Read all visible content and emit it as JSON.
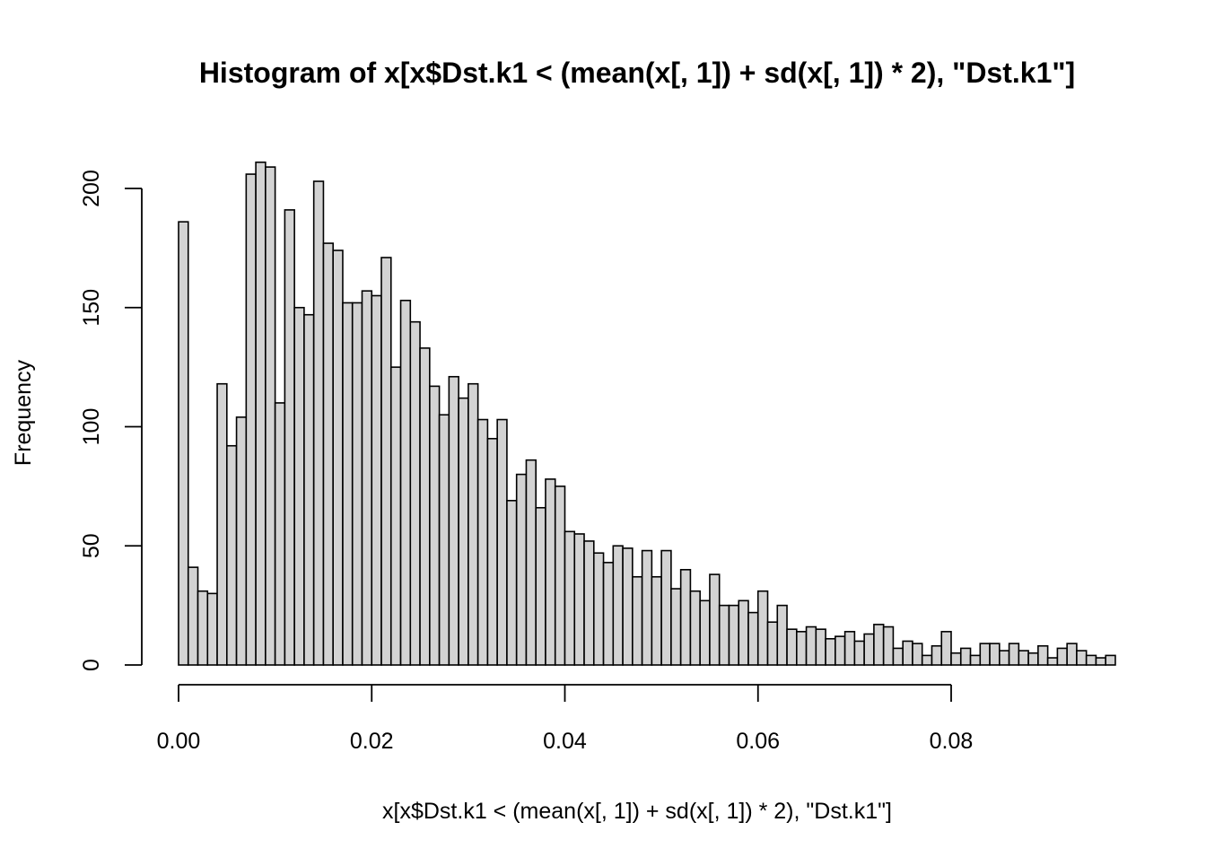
{
  "chart_data": {
    "type": "bar",
    "title": "Histogram of x[x$Dst.k1 < (mean(x[, 1]) + sd(x[, 1]) * 2), \"Dst.k1\"]",
    "xlabel": "x[x$Dst.k1 < (mean(x[, 1]) + sd(x[, 1]) * 2), \"Dst.k1\"]",
    "ylabel": "Frequency",
    "bin_start": 0.0,
    "bin_width": 0.001,
    "xlim": [
      0.0,
      0.095
    ],
    "ylim": [
      0,
      212
    ],
    "x_ticks": [
      0.0,
      0.02,
      0.04,
      0.06,
      0.08
    ],
    "x_tick_labels": [
      "0.00",
      "0.02",
      "0.04",
      "0.06",
      "0.08"
    ],
    "y_ticks": [
      0,
      50,
      100,
      150,
      200
    ],
    "y_tick_labels": [
      "0",
      "50",
      "100",
      "150",
      "200"
    ],
    "grid": false,
    "bar_fill": "#d3d3d3",
    "bar_stroke": "#000000",
    "values": [
      186,
      41,
      31,
      30,
      118,
      92,
      104,
      206,
      211,
      209,
      110,
      191,
      150,
      147,
      203,
      177,
      174,
      152,
      152,
      157,
      155,
      171,
      125,
      153,
      144,
      133,
      117,
      105,
      121,
      112,
      118,
      103,
      95,
      103,
      69,
      80,
      86,
      66,
      78,
      75,
      56,
      55,
      52,
      47,
      43,
      50,
      49,
      37,
      48,
      37,
      48,
      32,
      40,
      31,
      27,
      38,
      25,
      25,
      27,
      22,
      31,
      18,
      25,
      15,
      14,
      16,
      15,
      11,
      12,
      14,
      10,
      13,
      17,
      16,
      7,
      10,
      9,
      4,
      8,
      14,
      5,
      7,
      4,
      9,
      9,
      6,
      9,
      6,
      5,
      8,
      3,
      7,
      9,
      6,
      4,
      3,
      4
    ]
  }
}
